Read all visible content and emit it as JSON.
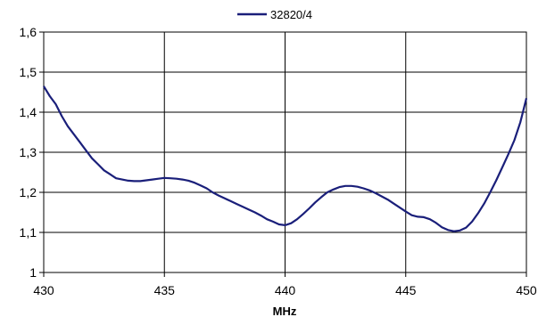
{
  "chart_data": {
    "type": "line",
    "title": "",
    "xlabel": "MHz",
    "ylabel": "",
    "xlim": [
      430,
      450
    ],
    "ylim": [
      1.0,
      1.6
    ],
    "x_ticks": [
      "430",
      "435",
      "440",
      "445",
      "450"
    ],
    "y_ticks": [
      "1",
      "1,1",
      "1,2",
      "1,3",
      "1,4",
      "1,5",
      "1,6"
    ],
    "grid": true,
    "legend_position": "top",
    "series": [
      {
        "name": "32820/4",
        "color": "#1a1f7a",
        "points": [
          [
            430.0,
            1.465
          ],
          [
            430.25,
            1.44
          ],
          [
            430.5,
            1.42
          ],
          [
            430.75,
            1.39
          ],
          [
            431.0,
            1.365
          ],
          [
            431.25,
            1.345
          ],
          [
            431.5,
            1.325
          ],
          [
            431.75,
            1.305
          ],
          [
            432.0,
            1.285
          ],
          [
            432.25,
            1.27
          ],
          [
            432.5,
            1.255
          ],
          [
            432.75,
            1.245
          ],
          [
            433.0,
            1.235
          ],
          [
            433.25,
            1.232
          ],
          [
            433.5,
            1.229
          ],
          [
            433.75,
            1.228
          ],
          [
            434.0,
            1.228
          ],
          [
            434.25,
            1.23
          ],
          [
            434.5,
            1.232
          ],
          [
            434.75,
            1.234
          ],
          [
            435.0,
            1.236
          ],
          [
            435.25,
            1.235
          ],
          [
            435.5,
            1.234
          ],
          [
            435.75,
            1.232
          ],
          [
            436.0,
            1.229
          ],
          [
            436.25,
            1.224
          ],
          [
            436.5,
            1.217
          ],
          [
            436.75,
            1.21
          ],
          [
            437.0,
            1.2
          ],
          [
            437.25,
            1.192
          ],
          [
            437.5,
            1.185
          ],
          [
            437.75,
            1.178
          ],
          [
            438.0,
            1.171
          ],
          [
            438.25,
            1.164
          ],
          [
            438.5,
            1.157
          ],
          [
            438.75,
            1.15
          ],
          [
            439.0,
            1.142
          ],
          [
            439.25,
            1.133
          ],
          [
            439.5,
            1.127
          ],
          [
            439.75,
            1.12
          ],
          [
            440.0,
            1.118
          ],
          [
            440.25,
            1.123
          ],
          [
            440.5,
            1.133
          ],
          [
            440.75,
            1.146
          ],
          [
            441.0,
            1.16
          ],
          [
            441.25,
            1.175
          ],
          [
            441.5,
            1.188
          ],
          [
            441.75,
            1.2
          ],
          [
            442.0,
            1.207
          ],
          [
            442.25,
            1.213
          ],
          [
            442.5,
            1.216
          ],
          [
            442.75,
            1.216
          ],
          [
            443.0,
            1.214
          ],
          [
            443.25,
            1.21
          ],
          [
            443.5,
            1.205
          ],
          [
            443.75,
            1.198
          ],
          [
            444.0,
            1.19
          ],
          [
            444.25,
            1.182
          ],
          [
            444.5,
            1.172
          ],
          [
            444.75,
            1.162
          ],
          [
            445.0,
            1.152
          ],
          [
            445.25,
            1.143
          ],
          [
            445.5,
            1.139
          ],
          [
            445.75,
            1.138
          ],
          [
            446.0,
            1.133
          ],
          [
            446.25,
            1.124
          ],
          [
            446.5,
            1.113
          ],
          [
            446.75,
            1.106
          ],
          [
            447.0,
            1.103
          ],
          [
            447.25,
            1.105
          ],
          [
            447.5,
            1.112
          ],
          [
            447.75,
            1.127
          ],
          [
            448.0,
            1.148
          ],
          [
            448.25,
            1.172
          ],
          [
            448.5,
            1.2
          ],
          [
            448.75,
            1.23
          ],
          [
            449.0,
            1.262
          ],
          [
            449.25,
            1.295
          ],
          [
            449.5,
            1.33
          ],
          [
            449.75,
            1.375
          ],
          [
            450.0,
            1.435
          ]
        ]
      }
    ]
  }
}
